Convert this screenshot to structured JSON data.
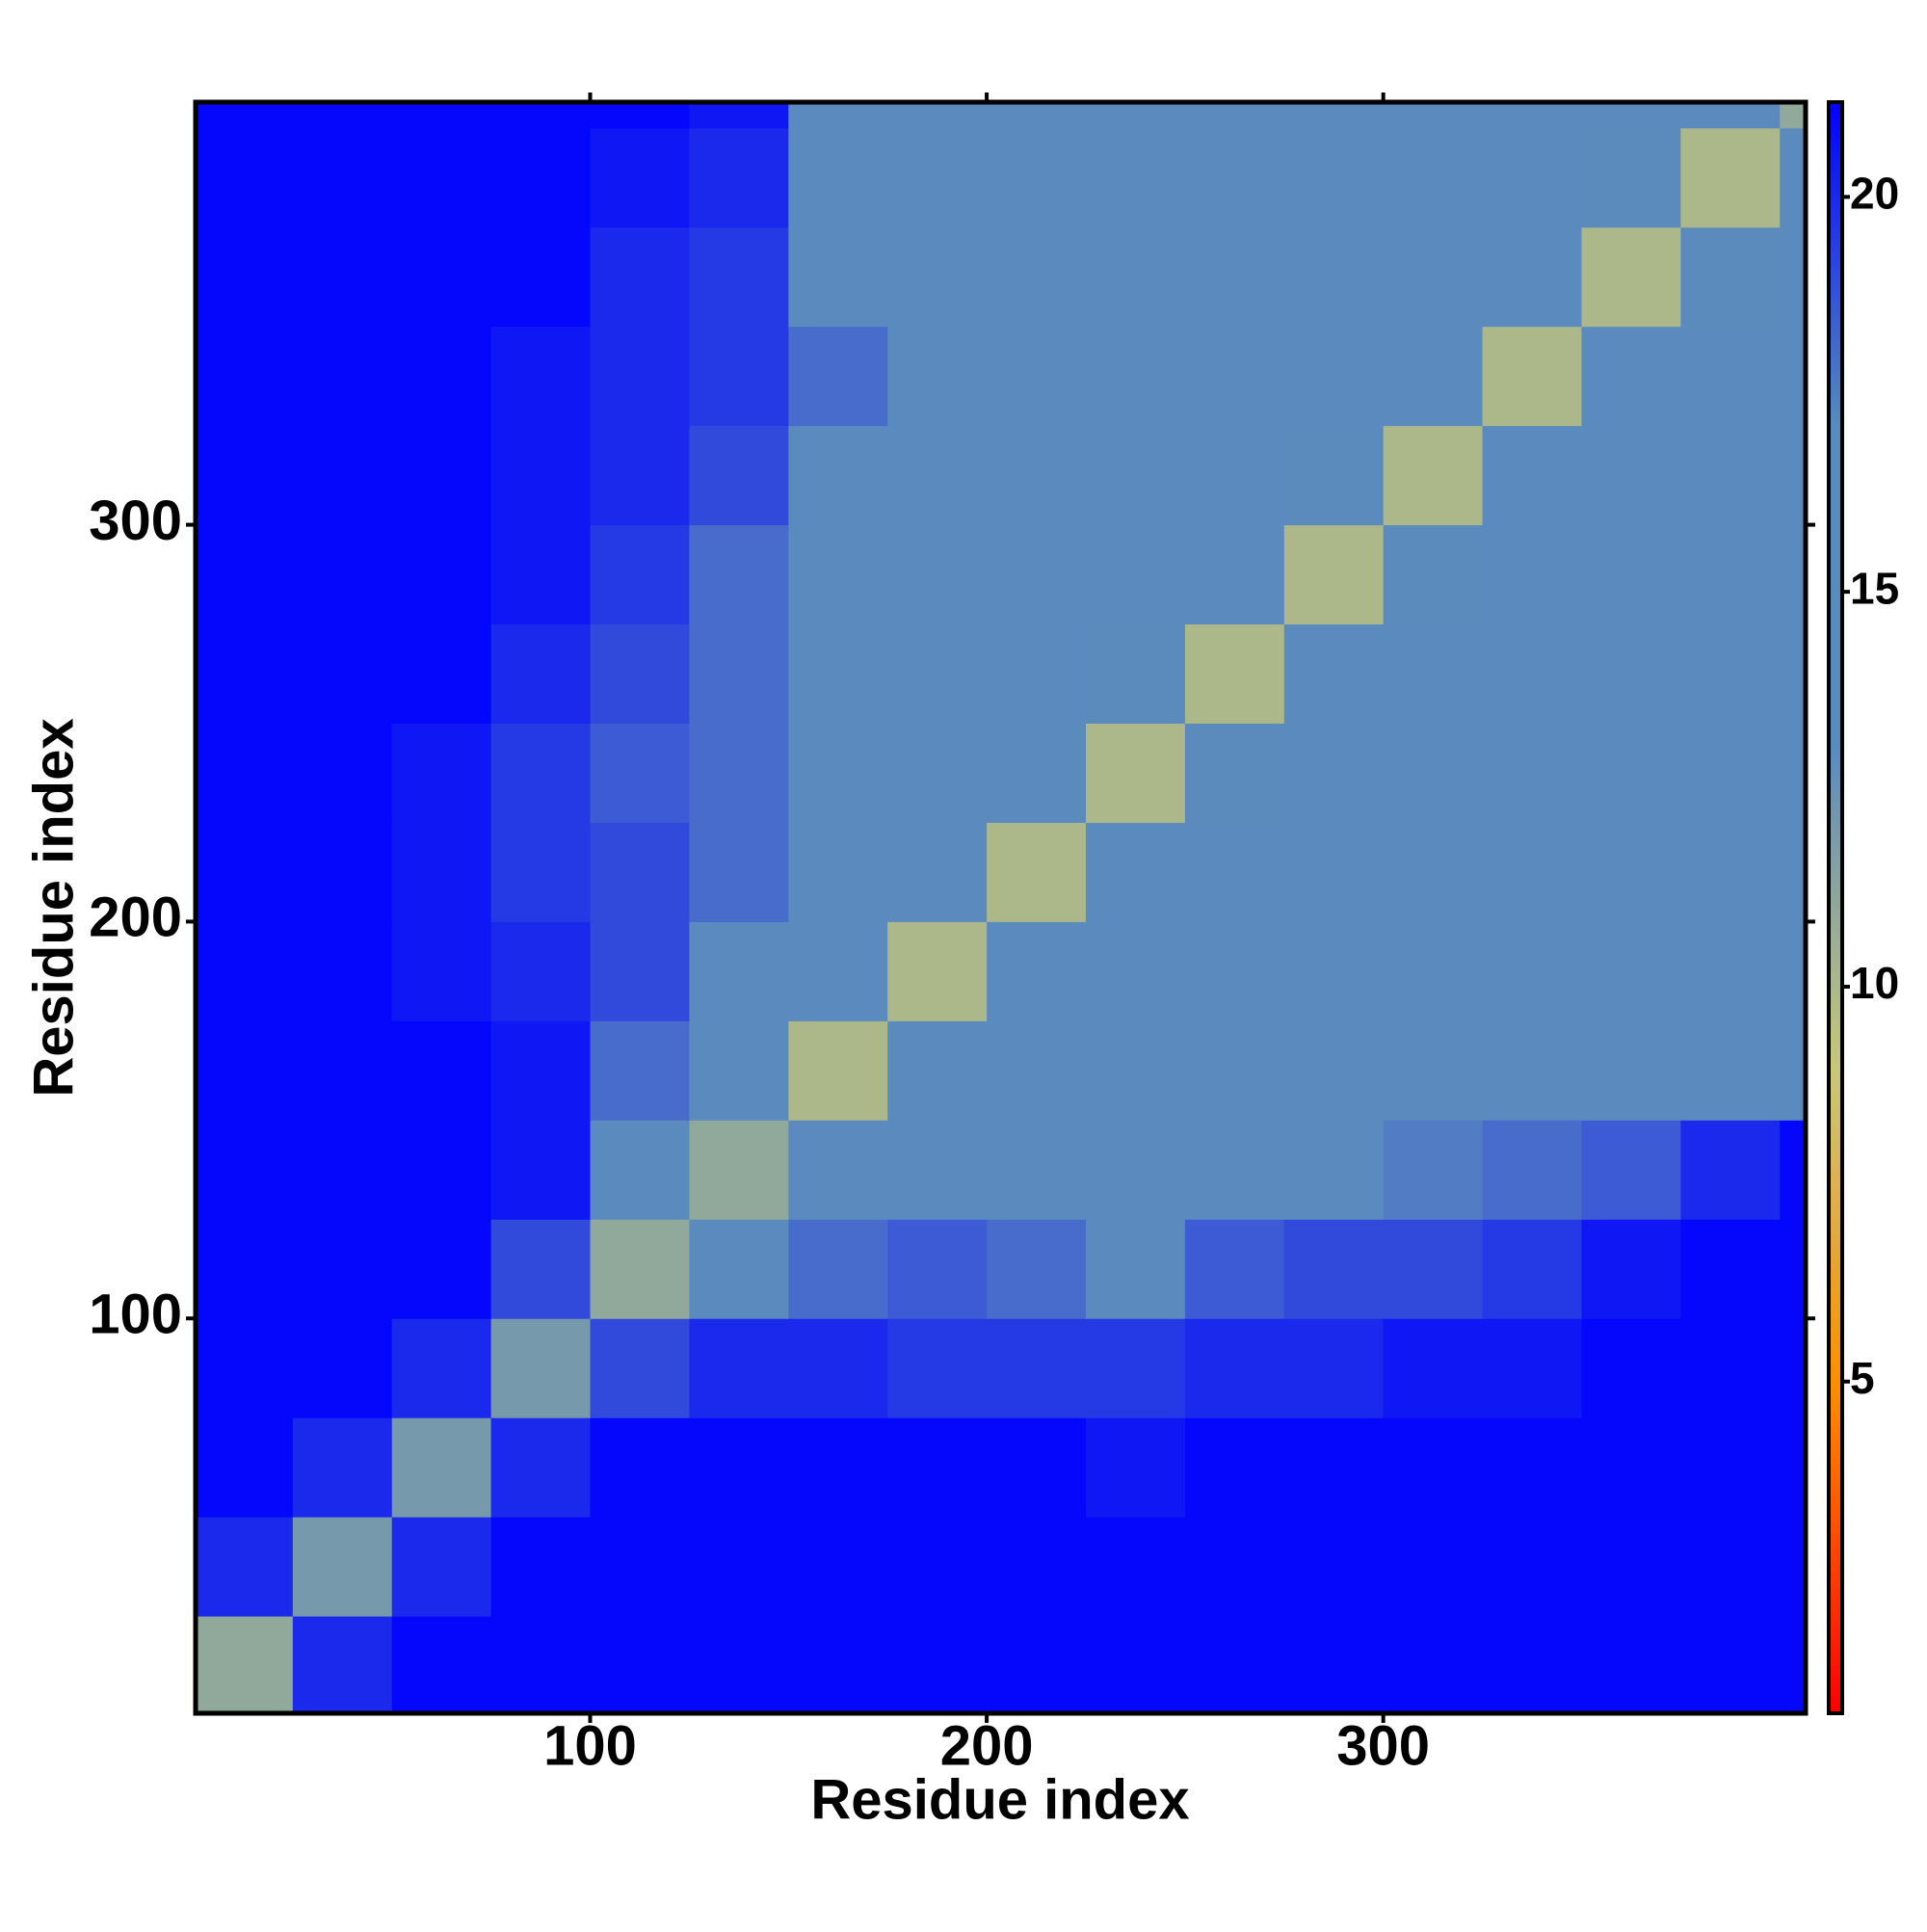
{
  "chart_data": {
    "type": "heatmap",
    "x_label": "Residue index",
    "y_label": "Residue index",
    "xlim": [
      0.5,
      406.5
    ],
    "ylim": [
      0.5,
      406.5
    ],
    "xticks": [
      100,
      200,
      300
    ],
    "yticks": [
      100,
      200,
      300
    ],
    "edges": [
      0.5,
      25,
      50,
      75,
      100,
      125,
      150,
      175,
      200,
      225,
      250,
      275,
      300,
      325,
      350,
      375,
      400,
      406.5
    ],
    "values": [
      [
        11,
        20,
        21,
        21,
        21,
        21,
        21,
        21,
        21,
        21,
        21,
        21,
        21,
        21,
        21,
        21,
        21
      ],
      [
        20,
        12,
        20,
        21,
        21,
        21,
        21,
        21,
        21,
        21,
        21,
        21,
        21,
        21,
        21,
        21,
        21
      ],
      [
        21,
        20,
        12,
        20,
        21,
        21,
        21,
        21,
        21,
        20.5,
        21,
        21,
        21,
        21,
        21,
        21,
        21
      ],
      [
        21,
        21,
        20,
        12,
        19,
        20,
        20,
        19.5,
        19.5,
        19.5,
        20,
        20,
        20.5,
        20.5,
        21,
        21,
        21
      ],
      [
        21,
        21,
        21,
        19,
        11,
        15,
        18,
        18.5,
        18,
        17,
        18.5,
        19,
        19,
        19.5,
        20.5,
        21,
        21
      ],
      [
        21,
        21,
        21,
        20.5,
        15,
        11,
        16,
        17,
        17,
        16,
        17,
        17,
        17.5,
        18,
        18.5,
        20,
        21
      ],
      [
        21,
        21,
        21,
        20.5,
        18,
        16,
        10,
        14,
        15,
        15,
        15,
        15,
        16,
        15,
        15,
        15,
        16
      ],
      [
        21,
        21,
        20.5,
        20,
        19,
        17,
        14,
        10,
        14,
        15,
        15,
        15,
        16,
        15,
        14,
        14,
        15
      ],
      [
        21,
        21,
        20.5,
        19.5,
        19,
        18,
        15,
        14,
        10,
        14,
        15,
        14,
        15,
        16,
        15,
        15,
        15
      ],
      [
        21,
        21,
        20.5,
        19.5,
        18.5,
        18,
        15,
        14,
        14,
        10,
        13,
        15,
        15,
        16,
        14,
        15,
        15
      ],
      [
        21,
        21,
        21,
        20,
        19,
        18,
        15,
        15,
        15,
        13,
        10,
        14,
        15,
        15,
        16,
        15,
        16
      ],
      [
        21,
        21,
        21,
        20.5,
        19.5,
        18,
        16,
        15,
        15,
        15,
        14,
        10,
        13,
        14,
        15,
        14,
        15
      ],
      [
        21,
        21,
        21,
        20.5,
        20,
        19,
        17,
        17,
        16,
        16,
        15,
        13,
        10,
        15,
        15,
        16,
        16
      ],
      [
        21,
        21,
        21,
        20.5,
        20,
        19.5,
        18,
        17,
        16,
        16,
        16,
        15,
        15,
        10,
        14,
        15,
        15
      ],
      [
        21,
        21,
        21,
        21,
        20,
        19.5,
        17,
        16,
        16,
        15,
        15,
        15,
        15,
        14,
        10,
        13,
        15
      ],
      [
        21,
        21,
        21,
        21,
        20.5,
        20,
        16,
        15,
        16,
        16,
        15,
        15,
        15,
        15,
        13,
        10,
        14
      ],
      [
        21,
        21,
        21,
        21,
        21,
        20.5,
        17,
        16,
        16,
        17,
        16,
        16,
        15,
        15,
        15,
        14,
        11
      ]
    ],
    "colorbar": {
      "lim": [
        0.8,
        21.2
      ],
      "ticks": [
        5,
        10,
        15,
        20
      ],
      "colors": [
        "#ff0000",
        "#ff8c00",
        "#c8c878",
        "#5a8abe",
        "#5a8abe",
        "#0000ff"
      ]
    }
  }
}
